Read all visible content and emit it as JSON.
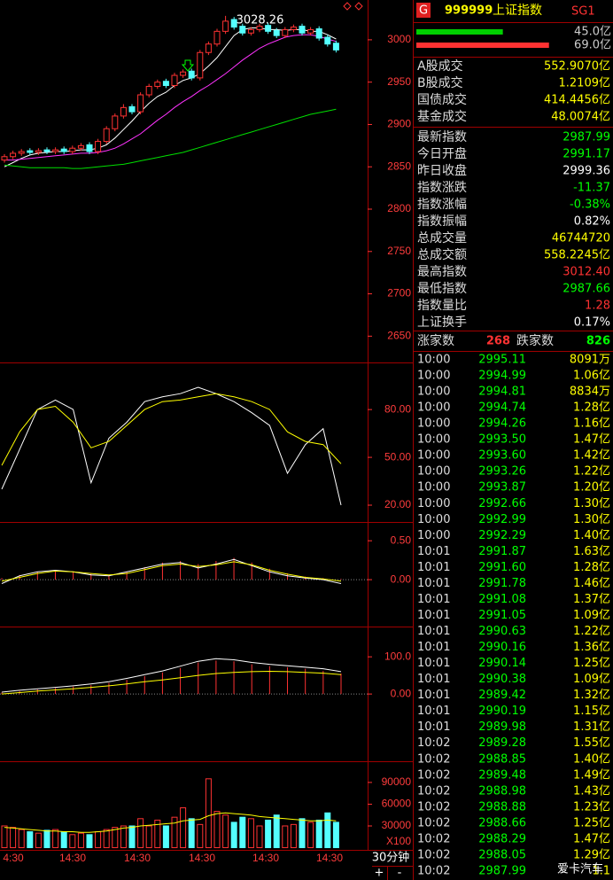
{
  "chart_data": [
    {
      "type": "candlestick",
      "ylim": [
        2620,
        3047
      ],
      "yticks": [
        2650,
        2700,
        2750,
        2800,
        2850,
        2900,
        2950,
        3000
      ],
      "grid": false,
      "up_color": "#ff3232",
      "down_color": "#54ffff",
      "open": [
        2858,
        2862,
        2866,
        2869,
        2867,
        2870,
        2868,
        2871,
        2868,
        2872,
        2876,
        2868,
        2880,
        2895,
        2910,
        2921,
        2915,
        2935,
        2945,
        2951,
        2946,
        2958,
        2963,
        2955,
        2985,
        2995,
        3010,
        3024,
        3016,
        3008,
        3012,
        3017,
        3011,
        3005,
        3012,
        3016,
        3008,
        3013,
        3003,
        2996
      ],
      "close": [
        2862,
        2866,
        2868,
        2867,
        2869,
        2868,
        2870,
        2868,
        2872,
        2875,
        2868,
        2880,
        2895,
        2910,
        2920,
        2915,
        2935,
        2945,
        2950,
        2946,
        2958,
        2962,
        2955,
        2985,
        2995,
        3010,
        3022,
        3015,
        3008,
        3012,
        3016,
        3010,
        3005,
        3012,
        3015,
        3008,
        3012,
        3002,
        2995,
        2988
      ],
      "high": [
        2865,
        2869,
        2871,
        2872,
        2872,
        2873,
        2873,
        2874,
        2875,
        2878,
        2879,
        2883,
        2898,
        2913,
        2924,
        2924,
        2938,
        2948,
        2953,
        2954,
        2961,
        2965,
        2966,
        2988,
        2998,
        3013,
        3028.26,
        3027,
        3019,
        3015,
        3019,
        3020,
        3014,
        3015,
        3018,
        3019,
        3015,
        3016,
        3006,
        2999
      ],
      "low": [
        2855,
        2859,
        2863,
        2864,
        2864,
        2865,
        2865,
        2865,
        2865,
        2869,
        2865,
        2865,
        2877,
        2892,
        2907,
        2912,
        2912,
        2932,
        2942,
        2943,
        2943,
        2955,
        2952,
        2952,
        2982,
        2992,
        3007,
        3012,
        3005,
        3005,
        3009,
        3007,
        3002,
        3002,
        3009,
        3005,
        3005,
        2999,
        2992,
        2985
      ],
      "series": [
        {
          "color": "#ffffff",
          "values": [
            2850,
            2855,
            2860,
            2864,
            2866,
            2867,
            2868,
            2868,
            2869,
            2870,
            2870,
            2872,
            2876,
            2884,
            2894,
            2904,
            2915,
            2925,
            2933,
            2938,
            2946,
            2952,
            2955,
            2960,
            2969,
            2979,
            2992,
            3005,
            3012,
            3014,
            3014,
            3012,
            3012,
            3011,
            3012,
            3012,
            3010,
            3010,
            3006,
            3001
          ]
        },
        {
          "color": "#ff33ff",
          "values": [
            2858,
            2858,
            2859,
            2860,
            2861,
            2862,
            2863,
            2864,
            2865,
            2866,
            2866,
            2867,
            2869,
            2872,
            2877,
            2883,
            2889,
            2897,
            2905,
            2912,
            2920,
            2927,
            2933,
            2940,
            2946,
            2953,
            2960,
            2968,
            2976,
            2983,
            2990,
            2995,
            2999,
            3003,
            3005,
            3006,
            3006,
            3004,
            3001,
            2998
          ]
        },
        {
          "color": "#00e000",
          "values": [
            2852,
            2851,
            2850,
            2849,
            2849,
            2849,
            2849,
            2849,
            2848,
            2848,
            2849,
            2850,
            2851,
            2852,
            2853,
            2855,
            2857,
            2859,
            2861,
            2863,
            2865,
            2867,
            2870,
            2873,
            2876,
            2879,
            2882,
            2885,
            2888,
            2891,
            2894,
            2897,
            2900,
            2903,
            2906,
            2909,
            2912,
            2914,
            2916,
            2918
          ]
        }
      ]
    },
    {
      "type": "line",
      "ylim": [
        10,
        109
      ],
      "yticks": [
        {
          "value": 20,
          "label": "20.00"
        },
        {
          "value": 50,
          "label": "50.00"
        },
        {
          "value": 80,
          "label": "80.00"
        }
      ],
      "series": [
        {
          "color": "#ffffff",
          "values": [
            30,
            55,
            80,
            86,
            80,
            34,
            62,
            72,
            85,
            88,
            90,
            94,
            90,
            85,
            78,
            70,
            40,
            58,
            68,
            20
          ]
        },
        {
          "color": "#ffff00",
          "values": [
            45,
            66,
            80,
            82,
            72,
            56,
            60,
            70,
            80,
            85,
            86,
            88,
            90,
            88,
            85,
            80,
            66,
            60,
            58,
            46
          ]
        }
      ]
    },
    {
      "type": "line",
      "ylim": [
        -0.58,
        0.73
      ],
      "yticks": [
        {
          "value": 0,
          "label": "0.00"
        },
        {
          "value": 0.5,
          "label": "0.50"
        }
      ],
      "bars": {
        "color": "#ff3232",
        "values": [
          0.02,
          0.06,
          0.1,
          0.12,
          0.1,
          0.08,
          0.06,
          0.1,
          0.16,
          0.22,
          0.24,
          0.2,
          0.24,
          0.28,
          0.22,
          0.14,
          0.08,
          0.04,
          0.02,
          0.01
        ]
      },
      "series": [
        {
          "color": "#ffffff",
          "values": [
            -0.05,
            0.05,
            0.1,
            0.12,
            0.1,
            0.06,
            0.05,
            0.1,
            0.15,
            0.2,
            0.22,
            0.15,
            0.2,
            0.26,
            0.18,
            0.1,
            0.05,
            0.02,
            0.0,
            -0.05
          ]
        },
        {
          "color": "#ffff00",
          "values": [
            -0.02,
            0.03,
            0.08,
            0.11,
            0.1,
            0.08,
            0.06,
            0.08,
            0.13,
            0.18,
            0.2,
            0.17,
            0.19,
            0.23,
            0.19,
            0.12,
            0.07,
            0.03,
            0.01,
            -0.02
          ]
        }
      ]
    },
    {
      "type": "line",
      "ylim": [
        -176,
        179
      ],
      "yticks": [
        {
          "value": 0,
          "label": "0.00"
        },
        {
          "value": 100,
          "label": "100.0"
        }
      ],
      "bars": {
        "color": "#ff3232",
        "values": [
          4,
          8,
          12,
          16,
          20,
          24,
          30,
          38,
          48,
          58,
          70,
          85,
          90,
          88,
          80,
          75,
          72,
          68,
          62,
          55
        ]
      },
      "series": [
        {
          "color": "#ffffff",
          "values": [
            5,
            10,
            14,
            18,
            22,
            27,
            33,
            42,
            52,
            62,
            75,
            88,
            95,
            92,
            85,
            80,
            76,
            72,
            68,
            60
          ]
        },
        {
          "color": "#ffff00",
          "values": [
            0,
            4,
            8,
            11,
            14,
            18,
            22,
            27,
            33,
            38,
            44,
            50,
            55,
            58,
            60,
            61,
            60,
            58,
            56,
            52
          ]
        }
      ]
    },
    {
      "type": "bar",
      "ylim": [
        -1800,
        118000
      ],
      "yticks": [
        30000,
        60000,
        90000
      ],
      "unit_label": "X100",
      "values": [
        30000,
        28000,
        25000,
        22000,
        20000,
        24000,
        25000,
        22000,
        18000,
        20000,
        18000,
        22000,
        25000,
        28000,
        30000,
        30000,
        40000,
        30000,
        38000,
        30000,
        42000,
        55000,
        40000,
        32000,
        95000,
        50000,
        45000,
        35000,
        42000,
        40000,
        30000,
        38000,
        45000,
        30000,
        32000,
        40000,
        35000,
        38000,
        48000,
        35000
      ],
      "series": [
        {
          "color": "#ffff00",
          "values": [
            28000,
            27000,
            26000,
            25000,
            24000,
            23000,
            23000,
            22000,
            22000,
            21000,
            21000,
            22000,
            23000,
            25000,
            27000,
            28000,
            30000,
            31000,
            32000,
            33000,
            34000,
            37000,
            38000,
            39000,
            44000,
            47000,
            48000,
            47000,
            46000,
            45000,
            43000,
            42000,
            41000,
            40000,
            39000,
            38000,
            37000,
            37000,
            38000,
            37000
          ]
        }
      ]
    }
  ],
  "x_axis": {
    "labels": [
      "4:30",
      "14:30",
      "14:30",
      "14:30",
      "14:30",
      "14:30"
    ],
    "period": "30分钟",
    "zoom_in": "+",
    "zoom_out": "-"
  },
  "header": {
    "badge": "G",
    "code": "999999",
    "name": "上证指数",
    "tag": "SG1"
  },
  "flow": [
    {
      "value": 45.0,
      "label": "45.0亿",
      "color": "#00d000"
    },
    {
      "value": 69.0,
      "label": "69.0亿",
      "color": "#ff3232"
    }
  ],
  "stats": [
    {
      "label": "A股成交",
      "value": "552.9070亿",
      "color": "#ffff00"
    },
    {
      "label": "B股成交",
      "value": "1.2109亿",
      "color": "#ffff00"
    },
    {
      "label": "国债成交",
      "value": "414.4456亿",
      "color": "#ffff00"
    },
    {
      "label": "基金成交",
      "value": "48.0074亿",
      "color": "#ffff00"
    },
    {
      "label": "最新指数",
      "value": "2987.99",
      "color": "#00ff00"
    },
    {
      "label": "今日开盘",
      "value": "2991.17",
      "color": "#00ff00"
    },
    {
      "label": "昨日收盘",
      "value": "2999.36",
      "color": "#ffffff"
    },
    {
      "label": "指数涨跌",
      "value": "-11.37",
      "color": "#00ff00"
    },
    {
      "label": "指数涨幅",
      "value": "-0.38%",
      "color": "#00ff00"
    },
    {
      "label": "指数振幅",
      "value": "0.82%",
      "color": "#ffffff"
    },
    {
      "label": "总成交量",
      "value": "46744720",
      "color": "#ffff00"
    },
    {
      "label": "总成交额",
      "value": "558.2245亿",
      "color": "#ffff00"
    },
    {
      "label": "最高指数",
      "value": "3012.40",
      "color": "#ff3232"
    },
    {
      "label": "最低指数",
      "value": "2987.66",
      "color": "#00ff00"
    },
    {
      "label": "指数量比",
      "value": "1.28",
      "color": "#ff3232"
    },
    {
      "label": "上证换手",
      "value": "0.17%",
      "color": "#ffffff"
    }
  ],
  "breadth": {
    "up_label": "涨家数",
    "up": "268",
    "down_label": "跌家数",
    "down": "826"
  },
  "ticks": [
    [
      "10:00",
      "2995.11",
      "8091万"
    ],
    [
      "10:00",
      "2994.99",
      "1.06亿"
    ],
    [
      "10:00",
      "2994.81",
      "8834万"
    ],
    [
      "10:00",
      "2994.74",
      "1.28亿"
    ],
    [
      "10:00",
      "2994.26",
      "1.16亿"
    ],
    [
      "10:00",
      "2993.50",
      "1.47亿"
    ],
    [
      "10:00",
      "2993.60",
      "1.42亿"
    ],
    [
      "10:00",
      "2993.26",
      "1.22亿"
    ],
    [
      "10:00",
      "2993.87",
      "1.20亿"
    ],
    [
      "10:00",
      "2992.66",
      "1.30亿"
    ],
    [
      "10:00",
      "2992.99",
      "1.30亿"
    ],
    [
      "10:00",
      "2992.29",
      "1.40亿"
    ],
    [
      "10:01",
      "2991.87",
      "1.63亿"
    ],
    [
      "10:01",
      "2991.60",
      "1.28亿"
    ],
    [
      "10:01",
      "2991.78",
      "1.46亿"
    ],
    [
      "10:01",
      "2991.08",
      "1.37亿"
    ],
    [
      "10:01",
      "2991.05",
      "1.09亿"
    ],
    [
      "10:01",
      "2990.63",
      "1.22亿"
    ],
    [
      "10:01",
      "2990.16",
      "1.36亿"
    ],
    [
      "10:01",
      "2990.14",
      "1.25亿"
    ],
    [
      "10:01",
      "2990.38",
      "1.09亿"
    ],
    [
      "10:01",
      "2989.42",
      "1.32亿"
    ],
    [
      "10:01",
      "2990.19",
      "1.15亿"
    ],
    [
      "10:01",
      "2989.98",
      "1.31亿"
    ],
    [
      "10:02",
      "2989.28",
      "1.55亿"
    ],
    [
      "10:02",
      "2988.85",
      "1.40亿"
    ],
    [
      "10:02",
      "2989.48",
      "1.49亿"
    ],
    [
      "10:02",
      "2988.98",
      "1.43亿"
    ],
    [
      "10:02",
      "2988.88",
      "1.23亿"
    ],
    [
      "10:02",
      "2988.66",
      "1.25亿"
    ],
    [
      "10:02",
      "2988.29",
      "1.47亿"
    ],
    [
      "10:02",
      "2988.05",
      "1.29亿"
    ],
    [
      "10:02",
      "2987.99",
      "1.1"
    ]
  ],
  "watermark": "爱卡汽车"
}
